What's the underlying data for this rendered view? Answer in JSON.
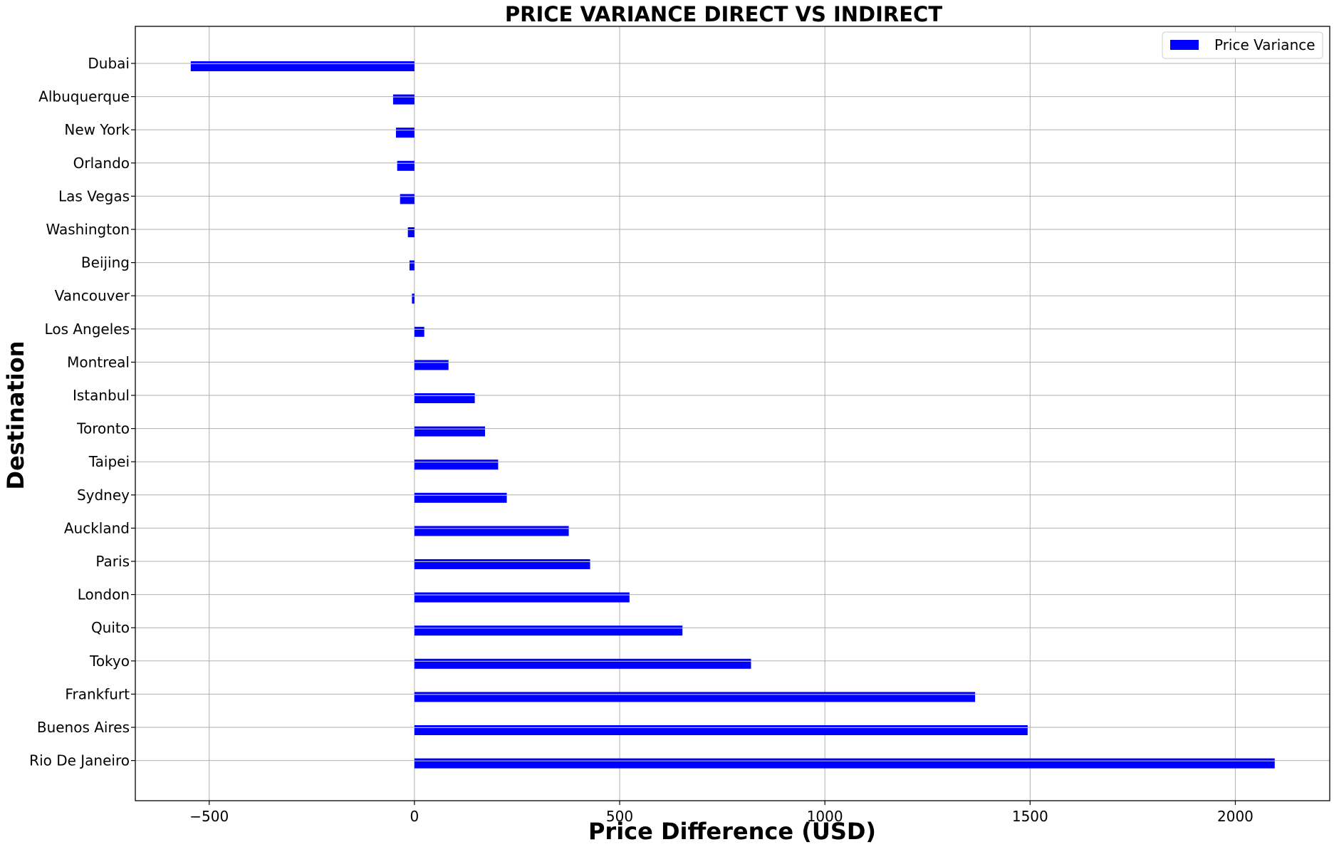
{
  "chart_data": {
    "type": "bar",
    "orientation": "horizontal",
    "title": "PRICE VARIANCE DIRECT VS INDIRECT",
    "xlabel": "Price Difference (USD)",
    "ylabel": "Destination",
    "xlim": [
      -680,
      2230
    ],
    "x_ticks": [
      -500,
      0,
      500,
      1000,
      1500,
      2000
    ],
    "x_tick_labels": [
      "−500",
      "0",
      "500",
      "1000",
      "1500",
      "2000"
    ],
    "grid": true,
    "legend_position": "top-right",
    "bar_color": "#0000ff",
    "categories": [
      "Dubai",
      "Albuquerque",
      "New York",
      "Orlando",
      "Las Vegas",
      "Washington",
      "Beijing",
      "Vancouver",
      "Los Angeles",
      "Montreal",
      "Istanbul",
      "Toronto",
      "Taipei",
      "Sydney",
      "Auckland",
      "Paris",
      "London",
      "Quito",
      "Tokyo",
      "Frankfurt",
      "Buenos Aires",
      "Rio De Janeiro"
    ],
    "series": [
      {
        "name": "Price Variance",
        "values": [
          -545,
          -52,
          -45,
          -42,
          -35,
          -16,
          -12,
          -6,
          24,
          83,
          147,
          172,
          204,
          225,
          376,
          428,
          524,
          653,
          820,
          1366,
          1494,
          2096
        ]
      }
    ]
  }
}
